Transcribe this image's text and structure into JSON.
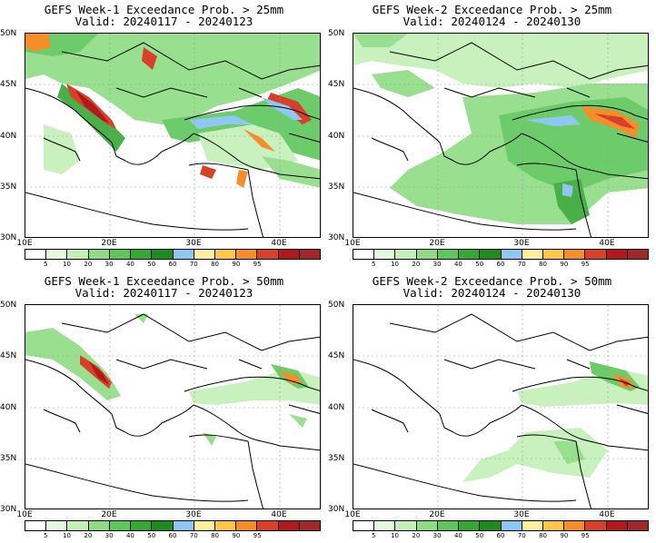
{
  "panels": [
    {
      "line1": "GEFS Week-1 Exceedance Prob. > 25mm",
      "line2": "Valid: 20240117 - 20240123"
    },
    {
      "line1": "GEFS Week-2 Exceedance Prob. > 25mm",
      "line2": "Valid: 20240124 - 20240130"
    },
    {
      "line1": "GEFS Week-1 Exceedance Prob. > 50mm",
      "line2": "Valid: 20240117 - 20240123"
    },
    {
      "line1": "GEFS Week-2 Exceedance Prob. > 50mm",
      "line2": "Valid: 20240124 - 20240130"
    }
  ],
  "lat_labels": [
    "50N",
    "45N",
    "40N",
    "35N",
    "30N"
  ],
  "lon_labels": [
    "10E",
    "20E",
    "30E",
    "40E"
  ],
  "colorbar": {
    "colors": [
      "#ffffff",
      "#e5f9e0",
      "#c3f0b6",
      "#8fdc84",
      "#5ec75a",
      "#35a834",
      "#1f8a1f",
      "#8ec8f2",
      "#fff0a0",
      "#ffc64a",
      "#f58d2b",
      "#d8402a",
      "#b01a1a",
      "#a02828"
    ],
    "labels": [
      "5",
      "10",
      "20",
      "30",
      "40",
      "50",
      "60",
      "70",
      "80",
      "90",
      "95"
    ]
  }
}
